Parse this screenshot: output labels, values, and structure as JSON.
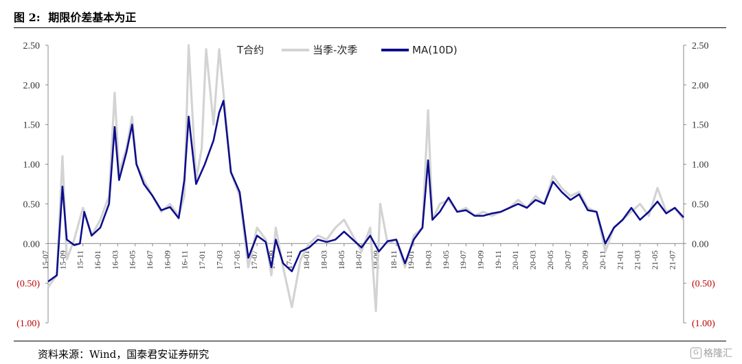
{
  "figure": {
    "number": "图 2:",
    "title": "期限价差基本为正",
    "source": "资料来源：Wind，国泰君安证券研究",
    "watermark": "格隆汇",
    "watermark_icon": "G-logo-icon"
  },
  "chart_data": {
    "type": "line",
    "legend": {
      "title": "T合约",
      "entries": [
        "当季-次季",
        "MA(10D)"
      ],
      "placement": "top-center"
    },
    "colors": {
      "spread": "#d3d3d3",
      "ma": "#0d0d8c",
      "negative_label": "#c00000"
    },
    "ylim": [
      -1.0,
      2.5
    ],
    "yticks": [
      2.5,
      2.0,
      1.5,
      1.0,
      0.5,
      0.0,
      -0.5,
      -1.0
    ],
    "ytick_labels": [
      "2.50",
      "2.00",
      "1.50",
      "1.00",
      "0.50",
      "0.00",
      "(0.50)",
      "(1.00)"
    ],
    "dual_y_axis": true,
    "grid": false,
    "x_range": [
      "15-07",
      "21-08"
    ],
    "xtick_labels": [
      "15-07",
      "15-09",
      "15-11",
      "16-01",
      "16-03",
      "16-05",
      "16-07",
      "16-09",
      "16-11",
      "17-01",
      "17-03",
      "17-05",
      "17-07",
      "17-09",
      "17-11",
      "18-01",
      "18-03",
      "18-05",
      "18-07",
      "18-09",
      "18-11",
      "19-01",
      "19-03",
      "19-05",
      "19-07",
      "19-09",
      "19-11",
      "20-01",
      "20-03",
      "20-05",
      "20-07",
      "20-09",
      "20-11",
      "21-01",
      "21-03",
      "21-05",
      "21-07"
    ],
    "series": [
      {
        "name": "当季-次季",
        "x": [
          "15-07",
          "15-08",
          "15-09",
          "15-09",
          "15-10",
          "15-11",
          "15-12",
          "16-01",
          "16-02",
          "16-03",
          "16-03",
          "16-04",
          "16-05",
          "16-05",
          "16-06",
          "16-07",
          "16-08",
          "16-09",
          "16-10",
          "16-11",
          "16-11",
          "16-12",
          "17-01",
          "17-01",
          "17-02",
          "17-03",
          "17-03",
          "17-04",
          "17-05",
          "17-06",
          "17-07",
          "17-08",
          "17-09",
          "17-09",
          "17-10",
          "17-11",
          "17-12",
          "18-01",
          "18-02",
          "18-03",
          "18-04",
          "18-05",
          "18-06",
          "18-07",
          "18-08",
          "18-09",
          "18-09",
          "18-10",
          "18-11",
          "18-12",
          "19-01",
          "19-02",
          "19-03",
          "19-03",
          "19-04",
          "19-05",
          "19-06",
          "19-07",
          "19-08",
          "19-09",
          "19-10",
          "19-11",
          "19-12",
          "20-01",
          "20-02",
          "20-03",
          "20-04",
          "20-05",
          "20-06",
          "20-07",
          "20-08",
          "20-09",
          "20-10",
          "20-11",
          "20-12",
          "21-01",
          "21-02",
          "21-03",
          "21-04",
          "21-05",
          "21-06",
          "21-07",
          "21-08"
        ],
        "values": [
          -0.55,
          -0.4,
          1.1,
          -0.2,
          0.05,
          0.45,
          0.1,
          0.3,
          0.6,
          1.9,
          0.9,
          1.2,
          1.6,
          1.0,
          0.8,
          0.6,
          0.4,
          0.5,
          0.35,
          0.6,
          2.5,
          0.8,
          1.2,
          2.45,
          1.5,
          2.45,
          1.9,
          0.9,
          0.6,
          -0.3,
          0.2,
          0.05,
          -0.4,
          0.2,
          -0.3,
          -0.8,
          -0.2,
          0.0,
          0.1,
          0.05,
          0.2,
          0.3,
          0.1,
          -0.1,
          0.2,
          -0.85,
          0.5,
          0.0,
          0.05,
          -0.3,
          0.1,
          0.2,
          1.68,
          0.3,
          0.5,
          0.55,
          0.4,
          0.45,
          0.35,
          0.4,
          0.35,
          0.4,
          0.45,
          0.55,
          0.45,
          0.6,
          0.5,
          0.85,
          0.7,
          0.6,
          0.65,
          0.45,
          0.4,
          -0.1,
          0.2,
          0.3,
          0.4,
          0.5,
          0.35,
          0.7,
          0.4,
          0.45,
          0.3
        ]
      },
      {
        "name": "MA(10D)",
        "x": [
          "15-07",
          "15-08",
          "15-09",
          "15-09",
          "15-10",
          "15-11",
          "15-11",
          "15-12",
          "16-01",
          "16-02",
          "16-03",
          "16-03",
          "16-04",
          "16-05",
          "16-05",
          "16-06",
          "16-07",
          "16-08",
          "16-09",
          "16-10",
          "16-11",
          "16-11",
          "16-12",
          "17-01",
          "17-02",
          "17-03",
          "17-03",
          "17-04",
          "17-05",
          "17-06",
          "17-07",
          "17-08",
          "17-09",
          "17-09",
          "17-10",
          "17-11",
          "17-12",
          "18-01",
          "18-02",
          "18-03",
          "18-04",
          "18-05",
          "18-06",
          "18-07",
          "18-08",
          "18-09",
          "18-10",
          "18-11",
          "18-12",
          "19-01",
          "19-02",
          "19-03",
          "19-03",
          "19-04",
          "19-05",
          "19-06",
          "19-07",
          "19-08",
          "19-09",
          "19-10",
          "19-11",
          "19-12",
          "20-01",
          "20-02",
          "20-03",
          "20-04",
          "20-05",
          "20-06",
          "20-07",
          "20-08",
          "20-09",
          "20-10",
          "20-11",
          "20-12",
          "21-01",
          "21-02",
          "21-03",
          "21-04",
          "21-05",
          "21-06",
          "21-07",
          "21-08"
        ],
        "values": [
          -0.48,
          -0.4,
          0.72,
          0.05,
          -0.02,
          0.0,
          0.4,
          0.1,
          0.2,
          0.5,
          1.47,
          0.8,
          1.15,
          1.5,
          1.0,
          0.75,
          0.6,
          0.42,
          0.46,
          0.32,
          0.8,
          1.6,
          0.75,
          1.0,
          1.3,
          1.65,
          1.8,
          0.9,
          0.65,
          -0.18,
          0.1,
          0.02,
          -0.3,
          0.05,
          -0.25,
          -0.35,
          -0.1,
          -0.05,
          0.05,
          0.02,
          0.05,
          0.15,
          0.05,
          -0.05,
          0.1,
          -0.1,
          0.03,
          0.05,
          -0.25,
          0.05,
          0.2,
          1.05,
          0.3,
          0.4,
          0.58,
          0.4,
          0.42,
          0.35,
          0.35,
          0.38,
          0.4,
          0.45,
          0.5,
          0.45,
          0.55,
          0.5,
          0.78,
          0.65,
          0.55,
          0.62,
          0.42,
          0.4,
          0.0,
          0.2,
          0.3,
          0.45,
          0.3,
          0.4,
          0.53,
          0.38,
          0.45,
          0.33
        ]
      }
    ]
  }
}
